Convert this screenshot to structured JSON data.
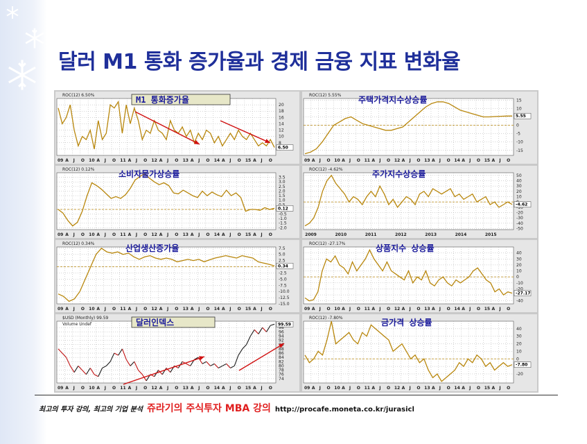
{
  "title": "달러 M1 통화 증가율과 경제 금융 지표 변화율",
  "footer": {
    "left": "최고의 투자 강의, 최고의 기업 분석",
    "middle": "쥬라기의 주식투자 MBA 강의",
    "url": "http://procafe.moneta.co.kr/jurasicl"
  },
  "colors": {
    "title": "#1f2f9a",
    "series": "#b8860b",
    "arrow": "#d01010",
    "dollar_up": "#1a1a1a",
    "dollar_down": "#c01010"
  },
  "icons": [
    "snowflake-icon",
    "snowflake-icon",
    "snowflake-icon"
  ],
  "x_axis_top": [
    "09",
    "A",
    "J",
    "O",
    "10",
    "A",
    "J",
    "O",
    "11",
    "A",
    "J",
    "O",
    "12",
    "A",
    "J",
    "O",
    "13",
    "A",
    "J",
    "O",
    "14",
    "A",
    "J",
    "O",
    "15",
    "A",
    "J",
    "O"
  ],
  "x_axis_years": [
    "2009",
    "2010",
    "2011",
    "2012",
    "2013",
    "2014",
    "2015"
  ],
  "chart_data": [
    {
      "id": "m1",
      "type": "line",
      "title": "M1 통화증가율",
      "legend": "ROC(12) 6.50%",
      "last_label": "6.50",
      "ylim": [
        4,
        22
      ],
      "yticks": [
        "20",
        "18",
        "16",
        "14",
        "12",
        "10",
        "8",
        "6"
      ],
      "values": [
        19,
        14,
        16,
        20,
        12,
        7,
        10,
        9,
        12,
        6,
        15,
        9,
        11,
        20,
        19,
        21,
        11,
        20,
        14,
        19,
        15,
        9,
        12,
        11,
        15,
        12,
        11,
        9,
        15,
        12,
        11,
        13,
        10,
        12,
        8,
        11,
        9,
        12,
        11,
        8,
        10,
        7,
        9,
        11,
        9,
        12,
        10,
        9,
        11,
        9,
        7,
        8,
        7,
        9,
        6.5
      ]
    },
    {
      "id": "housing",
      "type": "line",
      "title": "주택가격지수상승률",
      "legend": "ROC(12) 5.55%",
      "last_label": "5.55",
      "ylim": [
        -18,
        16
      ],
      "yticks": [
        "15",
        "10",
        "5",
        "0",
        "-5",
        "-10",
        "-15"
      ],
      "values": [
        -17,
        -16,
        -14,
        -10,
        -5,
        0,
        2,
        4,
        5,
        3,
        1,
        0,
        -1,
        -2,
        -3,
        -3,
        -2,
        -1,
        2,
        5,
        8,
        11,
        13,
        14,
        14,
        13,
        11,
        9,
        8,
        7,
        6,
        5,
        5,
        5.2,
        5.4,
        5.5,
        5.55
      ]
    },
    {
      "id": "cpi",
      "type": "line",
      "title": "소비자물가상승률",
      "legend": "ROC(12) 0.12%",
      "last_label": "0.12",
      "ylim": [
        -2.2,
        4
      ],
      "yticks": [
        "3.5",
        "3.0",
        "2.5",
        "2.0",
        "1.5",
        "1.0",
        "0.5",
        "0.0",
        "-0.5",
        "-1.0",
        "-1.5",
        "-2.0"
      ],
      "values": [
        0,
        -0.4,
        -1.2,
        -1.8,
        -1.4,
        -0.2,
        1.5,
        2.9,
        2.6,
        2.2,
        1.7,
        1.2,
        1.4,
        1.2,
        1.6,
        2.3,
        3.2,
        3.6,
        3.9,
        3.4,
        3.0,
        2.7,
        2.9,
        2.6,
        1.8,
        1.7,
        2.1,
        1.8,
        1.5,
        1.3,
        2.0,
        1.5,
        1.9,
        1.6,
        1.4,
        2.1,
        1.5,
        1.8,
        1.3,
        -0.2,
        0,
        0,
        -0.1,
        0.2,
        0,
        0.12
      ]
    },
    {
      "id": "stocks",
      "type": "line",
      "title": "주가지수상승률",
      "legend": "ROC(12) -4.62%",
      "last_label": "-4.62",
      "ylim": [
        -52,
        55
      ],
      "yticks": [
        "50",
        "40",
        "30",
        "20",
        "10",
        "0",
        "-10",
        "-20",
        "-30",
        "-40",
        "-50"
      ],
      "values": [
        -45,
        -40,
        -30,
        -10,
        20,
        40,
        50,
        35,
        25,
        15,
        0,
        10,
        5,
        -5,
        10,
        20,
        10,
        30,
        15,
        -5,
        5,
        -10,
        0,
        10,
        5,
        -5,
        15,
        20,
        10,
        25,
        20,
        15,
        20,
        25,
        10,
        15,
        5,
        10,
        15,
        0,
        5,
        10,
        -5,
        0,
        -10,
        -5,
        0,
        -4.62
      ]
    },
    {
      "id": "industry",
      "type": "line",
      "title": "산업생산증가율",
      "legend": "ROC(12) 0.34%",
      "last_label": "0.34",
      "ylim": [
        -15,
        8
      ],
      "yticks": [
        "7.5",
        "5.0",
        "2.5",
        "0.0",
        "-2.5",
        "-5.0",
        "-7.5",
        "-10.0",
        "-12.5",
        "-15.0"
      ],
      "values": [
        -11,
        -12,
        -14,
        -13,
        -10,
        -5,
        0,
        5,
        7.5,
        6,
        5.5,
        6,
        5,
        5.5,
        4,
        3,
        4,
        4.5,
        3.5,
        3,
        3.5,
        3,
        2,
        2.5,
        3,
        2.5,
        3,
        2,
        2.8,
        3.5,
        4,
        4.5,
        4,
        3.5,
        4.5,
        4,
        3.5,
        2,
        1.5,
        1,
        0.34
      ]
    },
    {
      "id": "commodities",
      "type": "line",
      "title": "상품지수 상승률",
      "legend": "ROC(12) -27.17%",
      "last_label": "-27.17",
      "ylim": [
        -45,
        50
      ],
      "yticks": [
        "40",
        "30",
        "20",
        "10",
        "0",
        "-10",
        "-20",
        "-30",
        "-40"
      ],
      "values": [
        -35,
        -40,
        -38,
        -25,
        10,
        30,
        25,
        35,
        20,
        15,
        5,
        25,
        10,
        20,
        30,
        45,
        30,
        20,
        10,
        25,
        10,
        5,
        0,
        -5,
        10,
        -10,
        0,
        -5,
        10,
        -10,
        -15,
        -5,
        0,
        -10,
        -15,
        -5,
        -10,
        -5,
        0,
        10,
        15,
        5,
        -5,
        -10,
        -25,
        -20,
        -30,
        -25,
        -27.17
      ]
    },
    {
      "id": "dollar",
      "type": "line",
      "title": "달러인덱스",
      "legend": "$USD (Monthly) 99.59",
      "sublegend": "Volume Undef",
      "last_label": "99.59",
      "ylim": [
        72,
        101
      ],
      "yticks": [
        "98",
        "96",
        "94",
        "92",
        "90",
        "88",
        "86",
        "84",
        "82",
        "80",
        "78",
        "76",
        "74"
      ],
      "values": [
        88,
        86,
        84,
        80,
        77,
        80,
        78,
        76,
        79,
        76,
        75,
        79,
        80,
        82,
        86,
        85,
        88,
        83,
        80,
        82,
        78,
        76,
        73,
        76,
        75,
        78,
        76,
        79,
        77,
        80,
        79,
        82,
        81,
        80,
        83,
        84,
        81,
        82,
        80,
        81,
        79,
        80,
        81,
        79,
        80,
        85,
        88,
        90,
        94,
        97,
        95,
        98,
        96,
        99,
        99.59
      ]
    },
    {
      "id": "gold",
      "type": "line",
      "title": "금가격 상승률",
      "legend": "ROC(12) -7.80%",
      "last_label": "-7.80",
      "ylim": [
        -32,
        50
      ],
      "yticks": [
        "40",
        "30",
        "20",
        "10",
        "0",
        "-10",
        "-20"
      ],
      "values": [
        5,
        -5,
        0,
        10,
        5,
        25,
        50,
        20,
        25,
        30,
        35,
        25,
        20,
        35,
        30,
        45,
        40,
        35,
        30,
        25,
        10,
        15,
        20,
        10,
        0,
        5,
        -5,
        0,
        -15,
        -25,
        -20,
        -30,
        -25,
        -20,
        -15,
        -5,
        -10,
        0,
        -5,
        5,
        0,
        -10,
        -5,
        -15,
        -10,
        -5,
        -10,
        -7.8
      ]
    }
  ]
}
